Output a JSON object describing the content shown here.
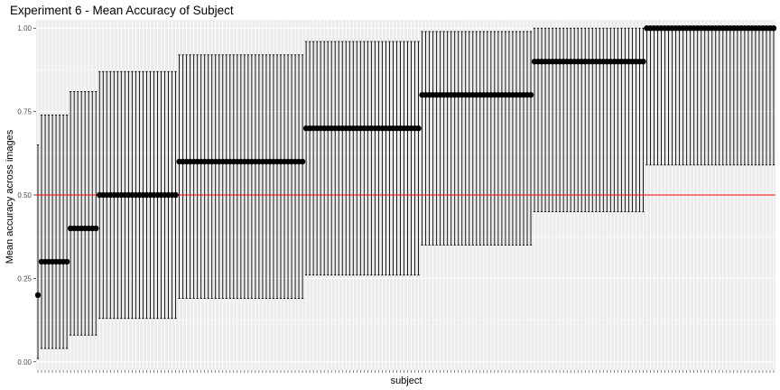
{
  "chart_data": {
    "type": "scatter",
    "title": "Experiment 6 - Mean Accuracy of Subject",
    "xlabel": "subject",
    "ylabel": "Mean accuracy across images",
    "ylim": [
      -0.025,
      1.025
    ],
    "y_ticks": [
      0.0,
      0.25,
      0.5,
      0.75,
      1.0
    ],
    "y_tick_labels": [
      "0.00",
      "0.25",
      "0.50",
      "0.75",
      "1.00"
    ],
    "x_tick_labels_shown": false,
    "grid": true,
    "subject_count": 204,
    "groups": [
      {
        "subjects": 1,
        "accuracy": 0.2,
        "ci_low": 0.01,
        "ci_high": 0.65
      },
      {
        "subjects": 8,
        "accuracy": 0.3,
        "ci_low": 0.04,
        "ci_high": 0.74
      },
      {
        "subjects": 8,
        "accuracy": 0.4,
        "ci_low": 0.08,
        "ci_high": 0.81
      },
      {
        "subjects": 22,
        "accuracy": 0.5,
        "ci_low": 0.13,
        "ci_high": 0.87
      },
      {
        "subjects": 35,
        "accuracy": 0.6,
        "ci_low": 0.19,
        "ci_high": 0.92
      },
      {
        "subjects": 32,
        "accuracy": 0.7,
        "ci_low": 0.26,
        "ci_high": 0.96
      },
      {
        "subjects": 31,
        "accuracy": 0.8,
        "ci_low": 0.35,
        "ci_high": 0.99
      },
      {
        "subjects": 31,
        "accuracy": 0.9,
        "ci_low": 0.45,
        "ci_high": 1.0
      },
      {
        "subjects": 36,
        "accuracy": 1.0,
        "ci_low": 0.59,
        "ci_high": 1.0
      }
    ],
    "reference_line": {
      "y": 0.5,
      "color": "#ff0000"
    },
    "colors": {
      "panel_background": "#ebebeb",
      "gridline": "#ffffff",
      "point": "#000000",
      "errorbar": "#000000",
      "tick_text": "#4d4d4d"
    }
  }
}
